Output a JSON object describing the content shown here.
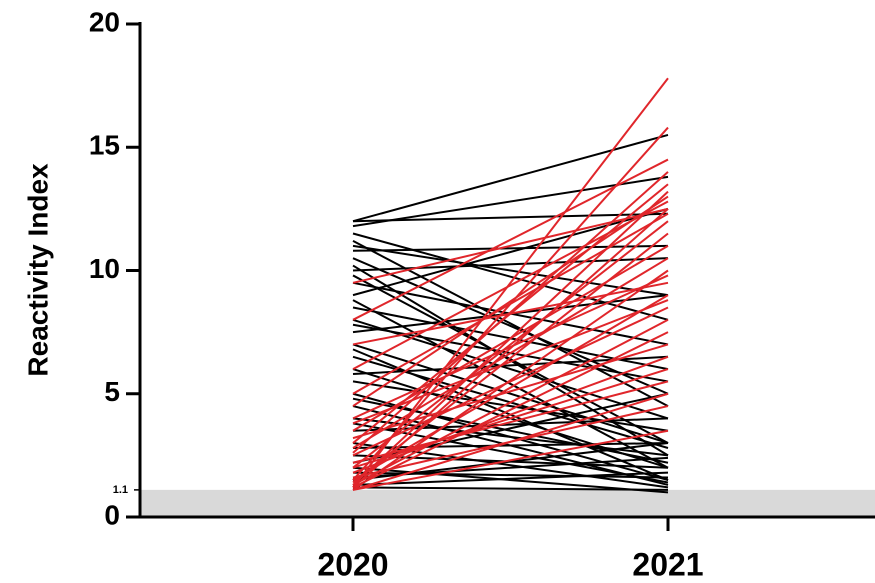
{
  "chart_data": {
    "type": "paired-line",
    "y_label": "Reactivity Index",
    "categories": [
      "2020",
      "2021"
    ],
    "ylim": [
      0,
      20
    ],
    "yticks": [
      0,
      1.1,
      5,
      10,
      15,
      20
    ],
    "threshold": 1.1,
    "threshold_color": "#d9d9d9",
    "series": [
      {
        "color": "#000000",
        "values": [
          12,
          12.3
        ]
      },
      {
        "color": "#000000",
        "values": [
          11.8,
          13.8
        ]
      },
      {
        "color": "#000000",
        "values": [
          12,
          15.5
        ]
      },
      {
        "color": "#000000",
        "values": [
          11,
          9
        ]
      },
      {
        "color": "#000000",
        "values": [
          10,
          10.5
        ]
      },
      {
        "color": "#000000",
        "values": [
          9.5,
          7
        ]
      },
      {
        "color": "#000000",
        "values": [
          8,
          4
        ]
      },
      {
        "color": "#000000",
        "values": [
          7,
          3
        ]
      },
      {
        "color": "#000000",
        "values": [
          6,
          2
        ]
      },
      {
        "color": "#000000",
        "values": [
          5,
          1.5
        ]
      },
      {
        "color": "#000000",
        "values": [
          4,
          2.5
        ]
      },
      {
        "color": "#000000",
        "values": [
          3,
          1.2
        ]
      },
      {
        "color": "#000000",
        "values": [
          2,
          1
        ]
      },
      {
        "color": "#000000",
        "values": [
          1.5,
          3
        ]
      },
      {
        "color": "#000000",
        "values": [
          10.5,
          5
        ]
      },
      {
        "color": "#000000",
        "values": [
          9,
          12.5
        ]
      },
      {
        "color": "#000000",
        "values": [
          8.5,
          6
        ]
      },
      {
        "color": "#000000",
        "values": [
          7.5,
          9
        ]
      },
      {
        "color": "#000000",
        "values": [
          6.5,
          2.8
        ]
      },
      {
        "color": "#000000",
        "values": [
          5.5,
          3.5
        ]
      },
      {
        "color": "#000000",
        "values": [
          4.5,
          1.3
        ]
      },
      {
        "color": "#000000",
        "values": [
          3.5,
          4
        ]
      },
      {
        "color": "#000000",
        "values": [
          2.5,
          2
        ]
      },
      {
        "color": "#000000",
        "values": [
          1.8,
          1.6
        ]
      },
      {
        "color": "#000000",
        "values": [
          1.2,
          1.1
        ]
      },
      {
        "color": "#000000",
        "values": [
          11.5,
          8
        ]
      },
      {
        "color": "#000000",
        "values": [
          10.8,
          11
        ]
      },
      {
        "color": "#000000",
        "values": [
          9.8,
          3
        ]
      },
      {
        "color": "#000000",
        "values": [
          8.8,
          2
        ]
      },
      {
        "color": "#000000",
        "values": [
          7.8,
          5.5
        ]
      },
      {
        "color": "#000000",
        "values": [
          6.8,
          1.5
        ]
      },
      {
        "color": "#000000",
        "values": [
          5.8,
          6.5
        ]
      },
      {
        "color": "#000000",
        "values": [
          4.8,
          2.2
        ]
      },
      {
        "color": "#000000",
        "values": [
          3.8,
          1.4
        ]
      },
      {
        "color": "#000000",
        "values": [
          2.8,
          3
        ]
      },
      {
        "color": "#000000",
        "values": [
          2.2,
          5
        ]
      },
      {
        "color": "#000000",
        "values": [
          1.6,
          2.4
        ]
      },
      {
        "color": "#000000",
        "values": [
          1.3,
          1.8
        ]
      },
      {
        "color": "#000000",
        "values": [
          11.2,
          4.5
        ]
      },
      {
        "color": "#000000",
        "values": [
          10.2,
          2.5
        ]
      },
      {
        "color": "#e0262b",
        "values": [
          1.2,
          17.8
        ]
      },
      {
        "color": "#e0262b",
        "values": [
          1.5,
          15.8
        ]
      },
      {
        "color": "#e0262b",
        "values": [
          8,
          14.5
        ]
      },
      {
        "color": "#e0262b",
        "values": [
          3,
          13.5
        ]
      },
      {
        "color": "#e0262b",
        "values": [
          1.2,
          12.5
        ]
      },
      {
        "color": "#e0262b",
        "values": [
          2,
          12
        ]
      },
      {
        "color": "#e0262b",
        "values": [
          4.5,
          13
        ]
      },
      {
        "color": "#e0262b",
        "values": [
          1.1,
          10
        ]
      },
      {
        "color": "#e0262b",
        "values": [
          1.5,
          9
        ]
      },
      {
        "color": "#e0262b",
        "values": [
          2.5,
          8.5
        ]
      },
      {
        "color": "#e0262b",
        "values": [
          3.5,
          11
        ]
      },
      {
        "color": "#e0262b",
        "values": [
          1.2,
          7.5
        ]
      },
      {
        "color": "#e0262b",
        "values": [
          1.8,
          6.5
        ]
      },
      {
        "color": "#e0262b",
        "values": [
          2.2,
          5.5
        ]
      },
      {
        "color": "#e0262b",
        "values": [
          1.1,
          5
        ]
      },
      {
        "color": "#e0262b",
        "values": [
          7,
          9.5
        ]
      },
      {
        "color": "#e0262b",
        "values": [
          5,
          12.3
        ]
      },
      {
        "color": "#e0262b",
        "values": [
          1.4,
          11.5
        ]
      },
      {
        "color": "#e0262b",
        "values": [
          2.8,
          10.5
        ]
      },
      {
        "color": "#e0262b",
        "values": [
          1.3,
          8
        ]
      },
      {
        "color": "#e0262b",
        "values": [
          3.2,
          7
        ]
      },
      {
        "color": "#e0262b",
        "values": [
          4,
          9.8
        ]
      },
      {
        "color": "#e0262b",
        "values": [
          6,
          12.8
        ]
      },
      {
        "color": "#e0262b",
        "values": [
          1.6,
          4.5
        ]
      },
      {
        "color": "#e0262b",
        "values": [
          2,
          6
        ]
      },
      {
        "color": "#e0262b",
        "values": [
          1.1,
          3.5
        ]
      },
      {
        "color": "#e0262b",
        "values": [
          9.5,
          12.5
        ]
      },
      {
        "color": "#e0262b",
        "values": [
          1.3,
          13.2
        ]
      },
      {
        "color": "#e0262b",
        "values": [
          2.6,
          14
        ]
      },
      {
        "color": "#e0262b",
        "values": [
          3.8,
          8.8
        ]
      }
    ]
  }
}
